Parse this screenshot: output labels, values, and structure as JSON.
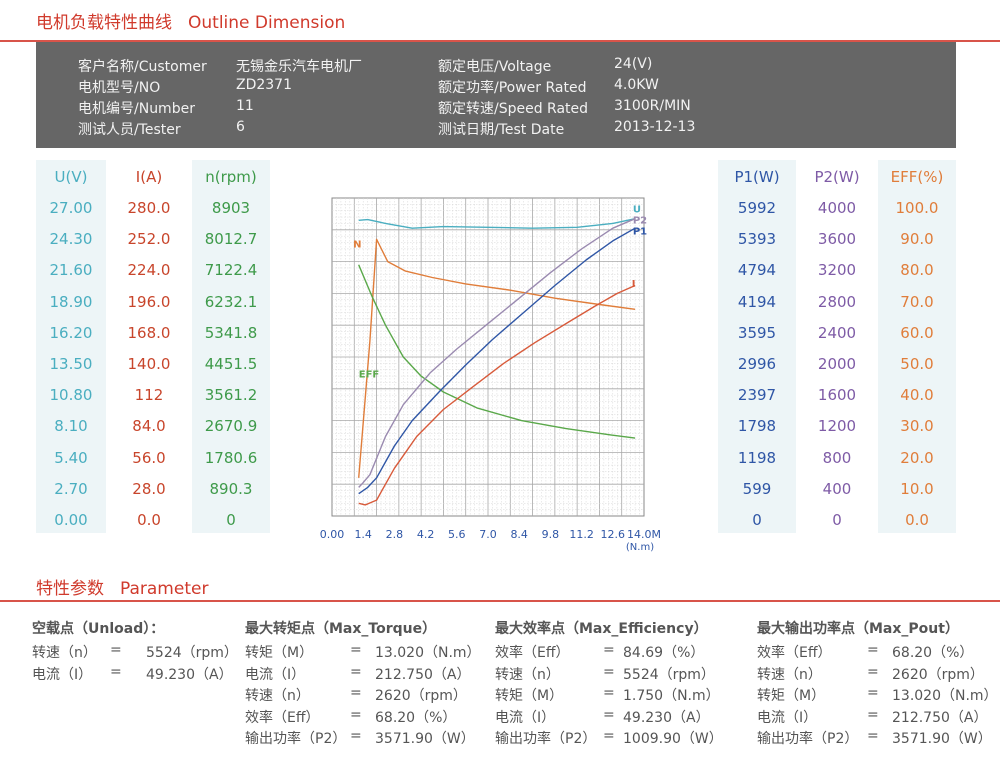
{
  "header": {
    "title_cn": "电机负载特性曲线",
    "title_en": "Outline Dimension"
  },
  "info": {
    "left": [
      {
        "label": "客户名称/Customer",
        "value": "无锡金乐汽车电机厂"
      },
      {
        "label": "电机型号/NO",
        "value": "ZD2371"
      },
      {
        "label": "电机编号/Number",
        "value": "11"
      },
      {
        "label": "测试人员/Tester",
        "value": "6"
      }
    ],
    "right": [
      {
        "label": "额定电压/Voltage",
        "value": "24(V)"
      },
      {
        "label": "额定功率/Power Rated",
        "value": "4.0KW"
      },
      {
        "label": "额定转速/Speed Rated",
        "value": "3100R/MIN"
      },
      {
        "label": "测试日期/Test Date",
        "value": "2013-12-13"
      }
    ]
  },
  "scales": {
    "u": {
      "header": "U(V)",
      "values": [
        "27.00",
        "24.30",
        "21.60",
        "18.90",
        "16.20",
        "13.50",
        "10.80",
        "8.10",
        "5.40",
        "2.70",
        "0.00"
      ]
    },
    "i": {
      "header": "I(A)",
      "values": [
        "280.0",
        "252.0",
        "224.0",
        "196.0",
        "168.0",
        "140.0",
        "112",
        "84.0",
        "56.0",
        "28.0",
        "0.0"
      ]
    },
    "n": {
      "header": "n(rpm)",
      "values": [
        "8903",
        "8012.7",
        "7122.4",
        "6232.1",
        "5341.8",
        "4451.5",
        "3561.2",
        "2670.9",
        "1780.6",
        "890.3",
        "0"
      ]
    },
    "p1": {
      "header": "P1(W)",
      "values": [
        "5992",
        "5393",
        "4794",
        "4194",
        "3595",
        "2996",
        "2397",
        "1798",
        "1198",
        "599",
        "0"
      ]
    },
    "p2": {
      "header": "P2(W)",
      "values": [
        "4000",
        "3600",
        "3200",
        "2800",
        "2400",
        "2000",
        "1600",
        "1200",
        "800",
        "400",
        "0"
      ]
    },
    "eff": {
      "header": "EFF(%)",
      "values": [
        "100.0",
        "90.0",
        "80.0",
        "70.0",
        "60.0",
        "50.0",
        "40.0",
        "30.0",
        "20.0",
        "10.0",
        "0.0"
      ]
    }
  },
  "chart_data": {
    "type": "line",
    "xlabel": "(N.m)",
    "xlim": [
      0,
      14
    ],
    "ylim": [
      0,
      10
    ],
    "x_ticks": [
      "0.00",
      "1.4",
      "2.8",
      "4.2",
      "5.6",
      "7.0",
      "8.4",
      "9.8",
      "11.2",
      "12.6",
      "14.0M"
    ],
    "series": [
      {
        "name": "U",
        "color": "#4aaec0",
        "x": [
          1.2,
          1.6,
          2.4,
          3.6,
          5,
          7,
          9,
          11,
          12.6,
          13.6
        ],
        "y": [
          9.3,
          9.32,
          9.2,
          9.05,
          9.1,
          9.08,
          9.05,
          9.08,
          9.2,
          9.35
        ]
      },
      {
        "name": "N",
        "color": "#e07d3a",
        "x": [
          1.2,
          1.7,
          2.0,
          2.5,
          3.3,
          4.5,
          6,
          8,
          10,
          12,
          13.6
        ],
        "y": [
          1.2,
          5.5,
          8.7,
          8.0,
          7.7,
          7.5,
          7.3,
          7.1,
          6.85,
          6.65,
          6.5
        ]
      },
      {
        "name": "EFF",
        "color": "#5aa84a",
        "x": [
          1.2,
          1.8,
          2.4,
          3.2,
          4.0,
          5.0,
          6.5,
          8.5,
          10.5,
          12.5,
          13.6
        ],
        "y": [
          7.9,
          6.9,
          6.0,
          5.0,
          4.4,
          3.9,
          3.4,
          3.0,
          2.75,
          2.55,
          2.45
        ]
      },
      {
        "name": "P2",
        "color": "#9a8ab0",
        "x": [
          1.2,
          1.4,
          1.7,
          2.4,
          3.2,
          4.4,
          5.6,
          7.0,
          8.4,
          9.8,
          11.2,
          12.6,
          13.6
        ],
        "y": [
          0.9,
          1.05,
          1.3,
          2.5,
          3.5,
          4.5,
          5.25,
          6.05,
          6.85,
          7.65,
          8.4,
          9.05,
          9.35
        ]
      },
      {
        "name": "P1",
        "color": "#2f56a6",
        "x": [
          1.2,
          1.6,
          2.0,
          2.8,
          3.6,
          4.8,
          6.0,
          7.2,
          8.6,
          10.0,
          11.4,
          12.6,
          13.6
        ],
        "y": [
          0.7,
          0.9,
          1.2,
          2.2,
          3.0,
          3.9,
          4.75,
          5.55,
          6.4,
          7.25,
          8.05,
          8.65,
          9.05
        ]
      },
      {
        "name": "I",
        "color": "#d85a3a",
        "x": [
          1.2,
          1.5,
          2.0,
          2.8,
          3.8,
          5.0,
          6.3,
          7.7,
          9.1,
          10.5,
          11.8,
          12.8,
          13.6
        ],
        "y": [
          0.4,
          0.35,
          0.5,
          1.5,
          2.5,
          3.35,
          4.05,
          4.8,
          5.45,
          6.05,
          6.6,
          7.0,
          7.25
        ]
      }
    ],
    "label_pos": [
      {
        "name": "U",
        "x": 13.5,
        "y": 9.55
      },
      {
        "name": "N",
        "x": 0.95,
        "y": 8.45
      },
      {
        "name": "EFF",
        "x": 1.2,
        "y": 4.35
      },
      {
        "name": "P2",
        "x": 13.5,
        "y": 9.2
      },
      {
        "name": "P1",
        "x": 13.5,
        "y": 8.85
      },
      {
        "name": "I",
        "x": 13.45,
        "y": 7.2
      }
    ]
  },
  "parameter": {
    "title_cn": "特性参数",
    "title_en": "Parameter",
    "groups": [
      {
        "title": "空载点（Unload）：",
        "rows": [
          {
            "k": "转速（n）",
            "eq": "=",
            "v": "5524（rpm）"
          },
          {
            "k": "电流（I）",
            "eq": "=",
            "v": "49.230（A）"
          }
        ]
      },
      {
        "title": "最大转矩点（Max_Torque）",
        "rows": [
          {
            "k": "转矩（M）",
            "eq": "=",
            "v": "13.020（N.m）"
          },
          {
            "k": "电流（I）",
            "eq": "=",
            "v": "212.750（A）"
          },
          {
            "k": "转速（n）",
            "eq": "=",
            "v": "2620（rpm）"
          },
          {
            "k": "效率（Eff）",
            "eq": "=",
            "v": "68.20（%）"
          },
          {
            "k": "输出功率（P2）",
            "eq": "=",
            "v": "3571.90（W）"
          }
        ]
      },
      {
        "title": "最大效率点（Max_Efficiency）",
        "rows": [
          {
            "k": "效率（Eff）",
            "eq": "=",
            "v": "84.69（%）"
          },
          {
            "k": "转速（n）",
            "eq": "=",
            "v": "5524（rpm）"
          },
          {
            "k": "转矩（M）",
            "eq": "=",
            "v": "1.750（N.m）"
          },
          {
            "k": "电流（I）",
            "eq": "=",
            "v": "49.230（A）"
          },
          {
            "k": "输出功率（P2）",
            "eq": "=",
            "v": "1009.90（W）"
          }
        ]
      },
      {
        "title": "最大输出功率点（Max_Pout）",
        "rows": [
          {
            "k": "效率（Eff）",
            "eq": "=",
            "v": "68.20（%）"
          },
          {
            "k": "转速（n）",
            "eq": "=",
            "v": "2620（rpm）"
          },
          {
            "k": "转矩（M）",
            "eq": "=",
            "v": "13.020（N.m）"
          },
          {
            "k": "电流（I）",
            "eq": "=",
            "v": "212.750（A）"
          },
          {
            "k": "输出功率（P2）",
            "eq": "=",
            "v": "3571.90（W）"
          }
        ]
      }
    ]
  }
}
